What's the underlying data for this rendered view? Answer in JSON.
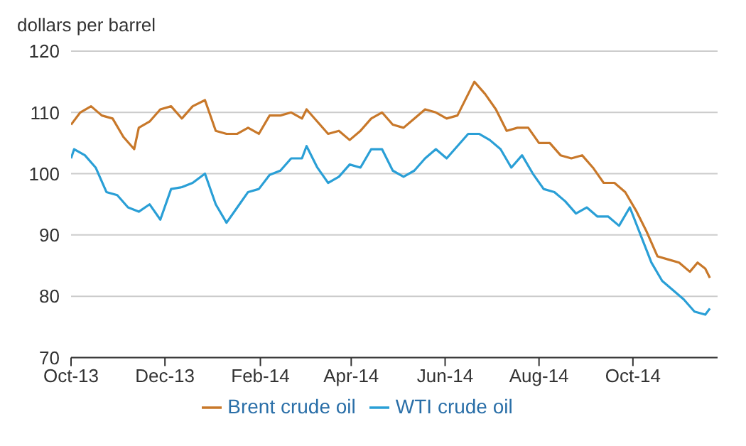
{
  "chart_data": {
    "type": "line",
    "ylabel": "dollars per barrel",
    "ylim": [
      70,
      120
    ],
    "yticks": [
      70,
      80,
      90,
      100,
      110,
      120
    ],
    "xlim": [
      "2013-10-01",
      "2014-11-25"
    ],
    "xticks": [
      {
        "value": "2013-10-01",
        "label": "Oct-13"
      },
      {
        "value": "2013-12-01",
        "label": "Dec-13"
      },
      {
        "value": "2014-02-01",
        "label": "Feb-14"
      },
      {
        "value": "2014-04-01",
        "label": "Apr-14"
      },
      {
        "value": "2014-06-01",
        "label": "Jun-14"
      },
      {
        "value": "2014-08-01",
        "label": "Aug-14"
      },
      {
        "value": "2014-10-01",
        "label": "Oct-14"
      }
    ],
    "grid": "y",
    "legend": "bottom",
    "marker": "none",
    "line_style": "solid",
    "series": [
      {
        "name": "WTI crude oil",
        "color": "#2a9fd6",
        "x": [
          "2013-10-01",
          "2013-10-03",
          "2013-10-10",
          "2013-10-17",
          "2013-10-24",
          "2013-10-31",
          "2013-11-07",
          "2013-11-14",
          "2013-11-21",
          "2013-11-28",
          "2013-12-05",
          "2013-12-12",
          "2013-12-19",
          "2013-12-27",
          "2014-01-03",
          "2014-01-10",
          "2014-01-17",
          "2014-01-24",
          "2014-01-31",
          "2014-02-07",
          "2014-02-14",
          "2014-02-21",
          "2014-02-28",
          "2014-03-03",
          "2014-03-10",
          "2014-03-17",
          "2014-03-24",
          "2014-03-31",
          "2014-04-07",
          "2014-04-14",
          "2014-04-21",
          "2014-04-28",
          "2014-05-05",
          "2014-05-12",
          "2014-05-19",
          "2014-05-26",
          "2014-06-02",
          "2014-06-09",
          "2014-06-16",
          "2014-06-23",
          "2014-06-30",
          "2014-07-07",
          "2014-07-14",
          "2014-07-21",
          "2014-07-28",
          "2014-08-04",
          "2014-08-11",
          "2014-08-18",
          "2014-08-25",
          "2014-09-01",
          "2014-09-08",
          "2014-09-15",
          "2014-09-22",
          "2014-09-29",
          "2014-10-06",
          "2014-10-13",
          "2014-10-20",
          "2014-10-27",
          "2014-11-03",
          "2014-11-10",
          "2014-11-17",
          "2014-11-20"
        ],
        "values": [
          102.5,
          104,
          103,
          101,
          97,
          96.5,
          94.5,
          93.8,
          95,
          92.5,
          97.5,
          97.8,
          98.5,
          100,
          95,
          92,
          94.5,
          97,
          97.5,
          99.8,
          100.5,
          102.5,
          102.5,
          104.5,
          101,
          98.5,
          99.5,
          101.5,
          101,
          104,
          104,
          100.5,
          99.5,
          100.5,
          102.5,
          104,
          102.5,
          104.5,
          106.5,
          106.5,
          105.5,
          104,
          101,
          103,
          100,
          97.5,
          97,
          95.5,
          93.5,
          94.5,
          93,
          93,
          91.5,
          94.5,
          90,
          85.5,
          82.5,
          81,
          79.5,
          77.5,
          77,
          78
        ]
      },
      {
        "name": "Brent crude oil",
        "color": "#c8782a",
        "x": [
          "2013-10-01",
          "2013-10-07",
          "2013-10-14",
          "2013-10-21",
          "2013-10-28",
          "2013-11-04",
          "2013-11-11",
          "2013-11-14",
          "2013-11-21",
          "2013-11-28",
          "2013-12-05",
          "2013-12-12",
          "2013-12-19",
          "2013-12-27",
          "2014-01-03",
          "2014-01-10",
          "2014-01-17",
          "2014-01-24",
          "2014-01-31",
          "2014-02-07",
          "2014-02-14",
          "2014-02-21",
          "2014-02-28",
          "2014-03-03",
          "2014-03-10",
          "2014-03-17",
          "2014-03-24",
          "2014-03-31",
          "2014-04-07",
          "2014-04-14",
          "2014-04-21",
          "2014-04-28",
          "2014-05-05",
          "2014-05-12",
          "2014-05-19",
          "2014-05-26",
          "2014-06-02",
          "2014-06-09",
          "2014-06-16",
          "2014-06-20",
          "2014-06-27",
          "2014-07-04",
          "2014-07-11",
          "2014-07-18",
          "2014-07-25",
          "2014-08-01",
          "2014-08-08",
          "2014-08-15",
          "2014-08-22",
          "2014-08-29",
          "2014-09-05",
          "2014-09-12",
          "2014-09-19",
          "2014-09-26",
          "2014-10-03",
          "2014-10-10",
          "2014-10-17",
          "2014-10-24",
          "2014-10-31",
          "2014-11-07",
          "2014-11-12",
          "2014-11-17",
          "2014-11-20"
        ],
        "values": [
          108,
          110,
          111,
          109.5,
          109,
          106,
          104,
          107.5,
          108.5,
          110.5,
          111,
          109,
          111,
          112,
          107,
          106.5,
          106.5,
          107.5,
          106.5,
          109.5,
          109.5,
          110,
          109,
          110.5,
          108.5,
          106.5,
          107,
          105.5,
          107,
          109,
          110,
          108,
          107.5,
          109,
          110.5,
          110,
          109,
          109.5,
          113,
          115,
          113,
          110.5,
          107,
          107.5,
          107.5,
          105,
          105,
          103,
          102.5,
          103,
          101,
          98.5,
          98.5,
          97,
          94,
          90.5,
          86.5,
          86,
          85.5,
          84,
          85.5,
          84.5,
          83
        ]
      }
    ]
  }
}
